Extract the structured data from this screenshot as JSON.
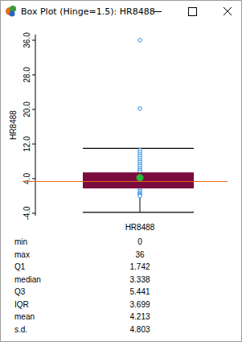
{
  "window_title": "Box Plot (Hinge=1.5): HR8488",
  "chart_data": {
    "type": "box",
    "y_label": "HR8488",
    "categories": [
      "HR8488"
    ],
    "ylim": [
      -4.56,
      37.3
    ],
    "yticks": [
      {
        "value": -4,
        "label": "-4.0"
      },
      {
        "value": 4,
        "label": "4.0"
      },
      {
        "value": 12,
        "label": "12.0"
      },
      {
        "value": 20,
        "label": "20.0"
      },
      {
        "value": 28,
        "label": "28.0"
      },
      {
        "value": 36,
        "label": "36.0"
      }
    ],
    "whiskers": [
      -3.807,
      10.99
    ],
    "points": [
      36,
      20.2,
      10.6,
      10.1,
      9.6,
      9.2,
      8.7,
      8.2,
      7.8,
      7.3,
      6.9,
      6.4,
      6.0,
      5.6,
      1.5,
      1.1,
      0.7,
      0.4,
      0.2,
      0
    ],
    "color": "#7b0a3f",
    "stats": [
      {
        "label": "min",
        "value": 0
      },
      {
        "label": "max",
        "value": 36
      },
      {
        "label": "Q1",
        "value": 1.742
      },
      {
        "label": "median",
        "value": 3.338
      },
      {
        "label": "Q3",
        "value": 5.441
      },
      {
        "label": "IQR",
        "value": 3.699
      },
      {
        "label": "mean",
        "value": 4.213
      },
      {
        "label": "s.d.",
        "value": 4.803
      }
    ]
  }
}
